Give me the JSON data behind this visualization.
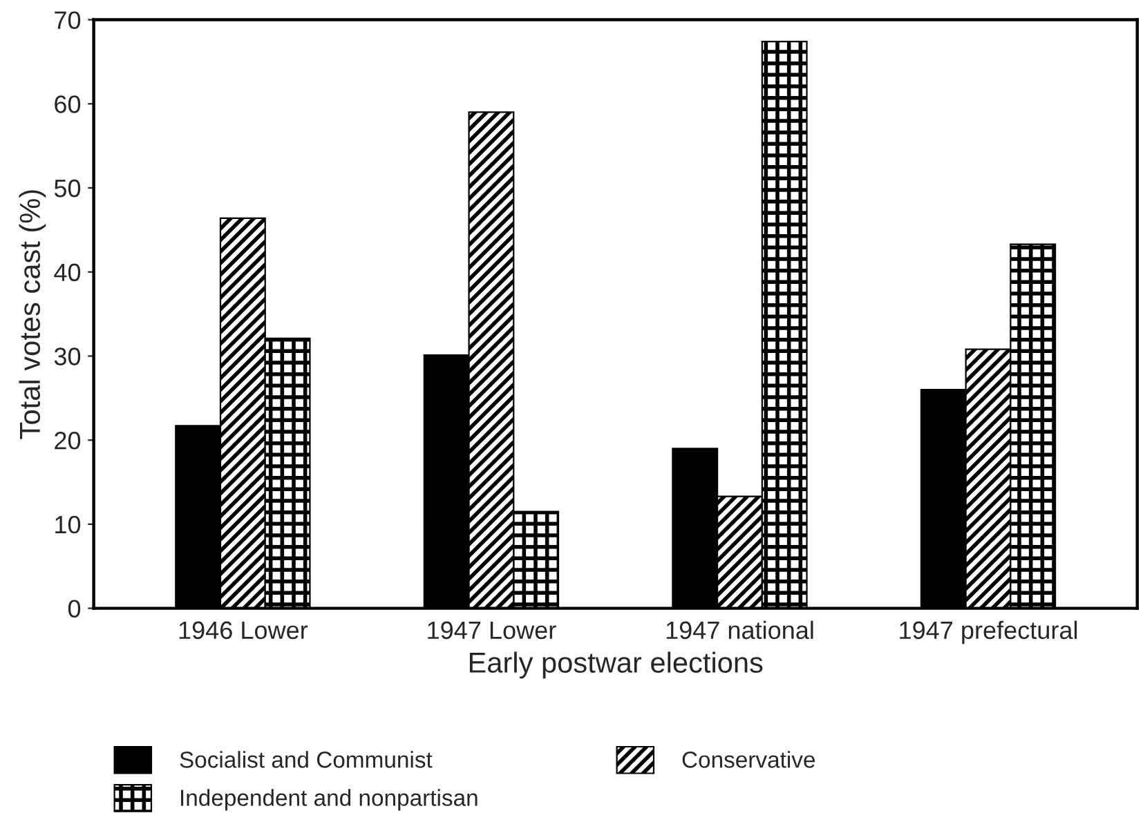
{
  "chart_data": {
    "type": "bar",
    "xlabel": "Early postwar elections",
    "ylabel": "Total votes cast (%)",
    "categories": [
      "1946 Lower",
      "1947 Lower",
      "1947 national",
      "1947 prefectural"
    ],
    "series": [
      {
        "name": "Socialist and Communist",
        "color": "#000000",
        "values": [
          21.7,
          30.1,
          19.0,
          26.0
        ]
      },
      {
        "name": "Conservative",
        "color": "#000000",
        "values": [
          46.4,
          59.0,
          13.3,
          30.8
        ]
      },
      {
        "name": "Independent and nonpartisan",
        "color": "#000000",
        "values": [
          32.1,
          11.5,
          67.4,
          43.3
        ]
      }
    ],
    "ylim": [
      0,
      70
    ],
    "yticks": [
      0,
      10,
      20,
      30,
      40,
      50,
      60,
      70
    ],
    "legend": "bottom"
  }
}
